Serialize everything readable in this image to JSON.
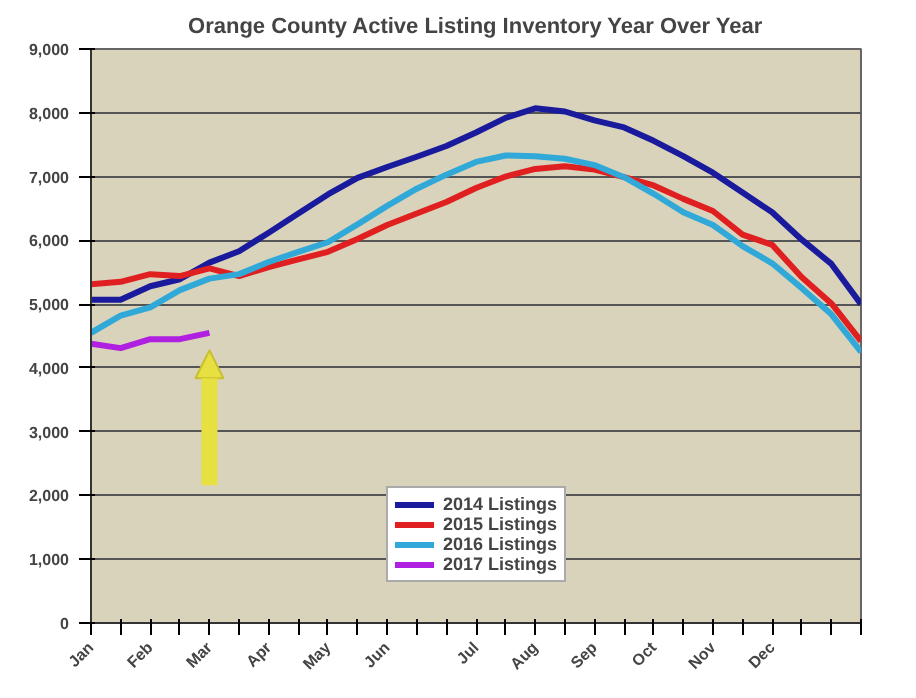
{
  "chart_data": {
    "type": "line",
    "title": "Orange County Active Listing Inventory Year Over Year",
    "categories": [
      "Jan",
      null,
      "Feb",
      null,
      "Mar",
      null,
      "Apr",
      null,
      "May",
      null,
      "Jun",
      null,
      null,
      "Jul",
      null,
      "Aug",
      null,
      "Sep",
      null,
      "Oct",
      null,
      "Nov",
      null,
      "Dec",
      null,
      null,
      null
    ],
    "ylim": [
      0,
      9000
    ],
    "yticks": [
      {
        "value": 0,
        "label": "0"
      },
      {
        "value": 1000,
        "label": "1,000"
      },
      {
        "value": 2000,
        "label": "2,000"
      },
      {
        "value": 3000,
        "label": "3,000"
      },
      {
        "value": 4000,
        "label": "4,000"
      },
      {
        "value": 5000,
        "label": "5,000"
      },
      {
        "value": 6000,
        "label": "6,000"
      },
      {
        "value": 7000,
        "label": "7,000"
      },
      {
        "value": 8000,
        "label": "8,000"
      },
      {
        "value": 9000,
        "label": "9,000"
      }
    ],
    "grid": "y",
    "legend": "bottom",
    "line_style": "solid",
    "marker": "none",
    "series": [
      {
        "name": "2014 Listings",
        "color": "#1a1a9c",
        "values": [
          5070,
          5070,
          5280,
          5390,
          5650,
          5830,
          6120,
          6420,
          6720,
          6980,
          7150,
          7310,
          7480,
          7690,
          7920,
          8070,
          8020,
          7880,
          7770,
          7560,
          7320,
          7060,
          6750,
          6440,
          6010,
          5630,
          5000
        ]
      },
      {
        "name": "2015 Listings",
        "color": "#e02020",
        "values": [
          5310,
          5350,
          5470,
          5440,
          5560,
          5440,
          5580,
          5700,
          5820,
          6020,
          6240,
          6420,
          6600,
          6820,
          7000,
          7120,
          7160,
          7110,
          6990,
          6860,
          6650,
          6460,
          6090,
          5930,
          5420,
          5010,
          4420
        ]
      },
      {
        "name": "2016 Listings",
        "color": "#30a8d8",
        "values": [
          4550,
          4820,
          4950,
          5220,
          5400,
          5470,
          5660,
          5820,
          5970,
          6250,
          6540,
          6810,
          7030,
          7230,
          7330,
          7320,
          7280,
          7180,
          6990,
          6730,
          6440,
          6240,
          5910,
          5640,
          5250,
          4840,
          4250
        ]
      },
      {
        "name": "2017 Listings",
        "color": "#b020e0",
        "values": [
          4380,
          4310,
          4450,
          4450,
          4550,
          null,
          null,
          null,
          null,
          null,
          null,
          null,
          null,
          null,
          null,
          null,
          null,
          null,
          null,
          null,
          null,
          null,
          null,
          null,
          null,
          null,
          null
        ]
      }
    ]
  }
}
